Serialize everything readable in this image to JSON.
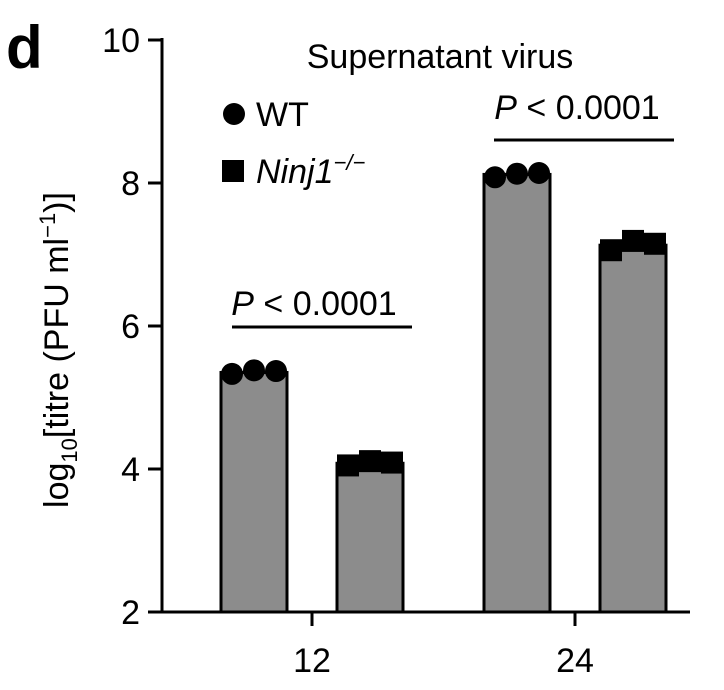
{
  "panel_label": "d",
  "chart_data": {
    "type": "bar",
    "title": "Supernatant virus",
    "xlabel": "",
    "ylabel": {
      "prefix": "log",
      "sub": "10",
      "mid": "[titre (PFU ml",
      "sup": "−1",
      "suffix": ")]"
    },
    "ylim": [
      2,
      10
    ],
    "yticks": [
      "2",
      "4",
      "6",
      "8",
      "10"
    ],
    "ytick_values": [
      2,
      4,
      6,
      8,
      10
    ],
    "categories": [
      "12",
      "24"
    ],
    "series": [
      {
        "name": "WT",
        "marker": "circle",
        "values": [
          5.35,
          8.12
        ],
        "points": [
          [
            5.33,
            5.38,
            5.37
          ],
          [
            8.08,
            8.13,
            8.14
          ]
        ]
      },
      {
        "name_main": "Ninj1",
        "name_sup": "−/−",
        "marker": "square",
        "values": [
          4.08,
          7.13
        ],
        "points": [
          [
            4.05,
            4.11,
            4.09
          ],
          [
            7.06,
            7.19,
            7.15
          ]
        ]
      }
    ],
    "colors": {
      "bar": "#8c8c8c",
      "edge": "#000000",
      "marker": "#000000"
    },
    "legend_placement": "top-left",
    "grid": false,
    "annotations": [
      {
        "p": "P",
        "rest": " < 0.0001",
        "category": "12"
      },
      {
        "p": "P",
        "rest": " < 0.0001",
        "category": "24"
      }
    ]
  }
}
